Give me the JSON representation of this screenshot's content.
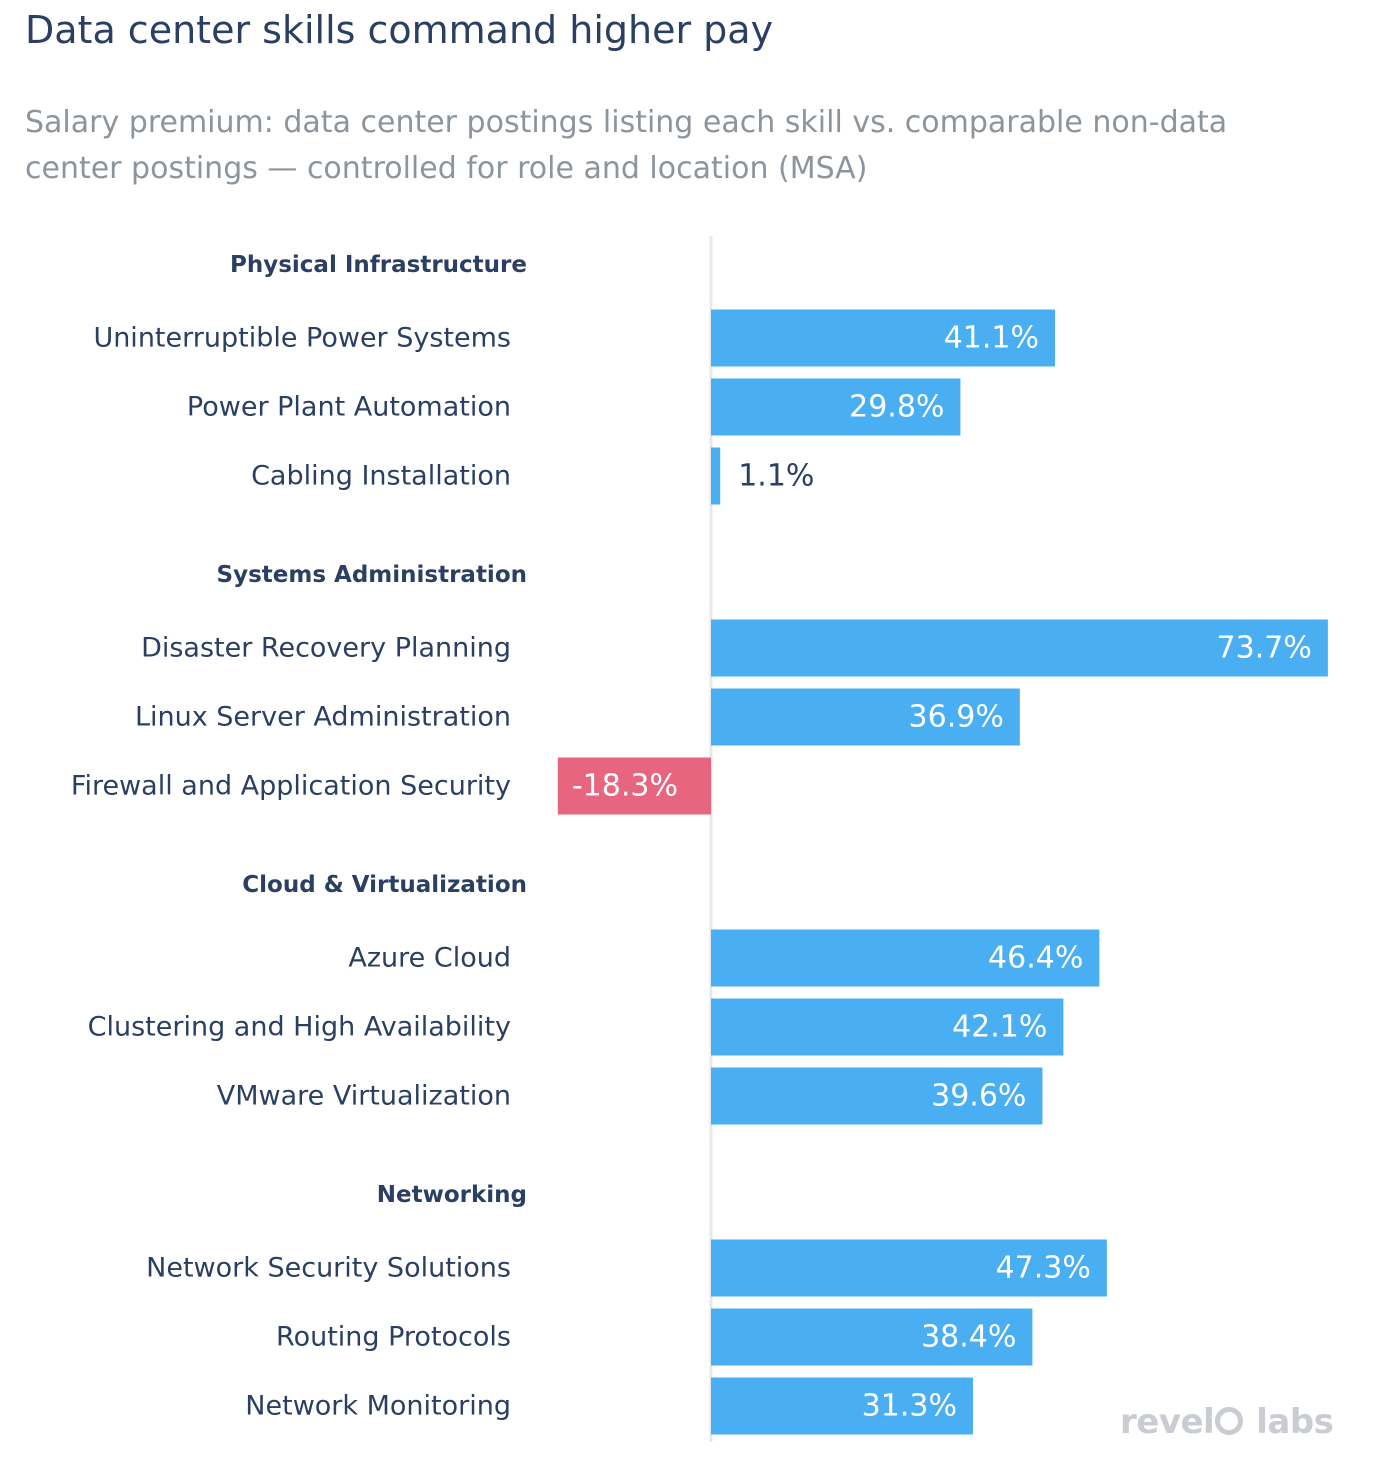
{
  "title": "Data center skills command higher pay",
  "subtitle": "Salary premium: data center postings listing each skill vs. comparable non-data center postings — controlled for role and location (MSA)",
  "colors": {
    "positive": "#4aaff2",
    "negative": "#e8657f",
    "group_label": "#2b3f63",
    "category_label": "#2b3f63",
    "axis": "#e6e8eb"
  },
  "chart_data": {
    "type": "bar",
    "orientation": "horizontal",
    "unit": "%",
    "groups": [
      {
        "name": "Physical Infrastructure",
        "items": [
          {
            "label": "Uninterruptible Power Systems",
            "value": 41.1
          },
          {
            "label": "Power Plant Automation",
            "value": 29.8
          },
          {
            "label": "Cabling Installation",
            "value": 1.1
          }
        ]
      },
      {
        "name": "Systems Administration",
        "items": [
          {
            "label": "Disaster Recovery Planning",
            "value": 73.7
          },
          {
            "label": "Linux Server Administration",
            "value": 36.9
          },
          {
            "label": "Firewall and Application Security",
            "value": -18.3
          }
        ]
      },
      {
        "name": "Cloud & Virtualization",
        "items": [
          {
            "label": "Azure Cloud",
            "value": 46.4
          },
          {
            "label": "Clustering and High Availability",
            "value": 42.1
          },
          {
            "label": "VMware Virtualization",
            "value": 39.6
          }
        ]
      },
      {
        "name": "Networking",
        "items": [
          {
            "label": "Network Security Solutions",
            "value": 47.3
          },
          {
            "label": "Routing Protocols",
            "value": 38.4
          },
          {
            "label": "Network Monitoring",
            "value": 31.3
          }
        ]
      }
    ]
  },
  "logo": {
    "part1": "revel",
    "part2": "labs"
  }
}
